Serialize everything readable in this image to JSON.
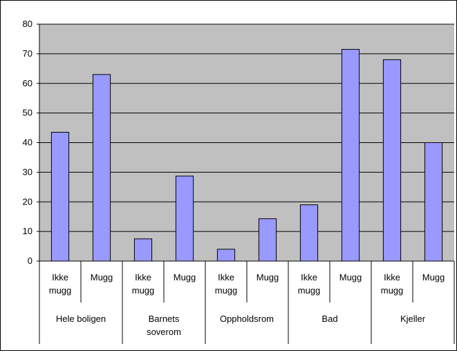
{
  "chart_data": {
    "type": "bar",
    "groups": [
      {
        "label_lines": [
          "Hele boligen"
        ]
      },
      {
        "label_lines": [
          "Barnets",
          "soverom"
        ]
      },
      {
        "label_lines": [
          "Oppholdsrom"
        ]
      },
      {
        "label_lines": [
          "Bad"
        ]
      },
      {
        "label_lines": [
          "Kjeller"
        ]
      }
    ],
    "categories": [
      [
        "Ikke",
        "mugg"
      ],
      [
        "Mugg"
      ],
      [
        "Ikke",
        "mugg"
      ],
      [
        "Mugg"
      ],
      [
        "Ikke",
        "mugg"
      ],
      [
        "Mugg"
      ],
      [
        "Ikke",
        "mugg"
      ],
      [
        "Mugg"
      ],
      [
        "Ikke",
        "mugg"
      ],
      [
        "Mugg"
      ]
    ],
    "values": [
      43.5,
      63,
      7.5,
      28.7,
      4,
      14.3,
      19,
      71.5,
      68,
      40
    ],
    "ylim": [
      0,
      80
    ],
    "yticks": [
      0,
      10,
      20,
      30,
      40,
      50,
      60,
      70,
      80
    ],
    "grid": true,
    "legend": "none",
    "colors": {
      "bar": "#9999ff",
      "plot_background": "#c0c0c0",
      "gridline": "#000000",
      "axis": "#000000"
    }
  }
}
